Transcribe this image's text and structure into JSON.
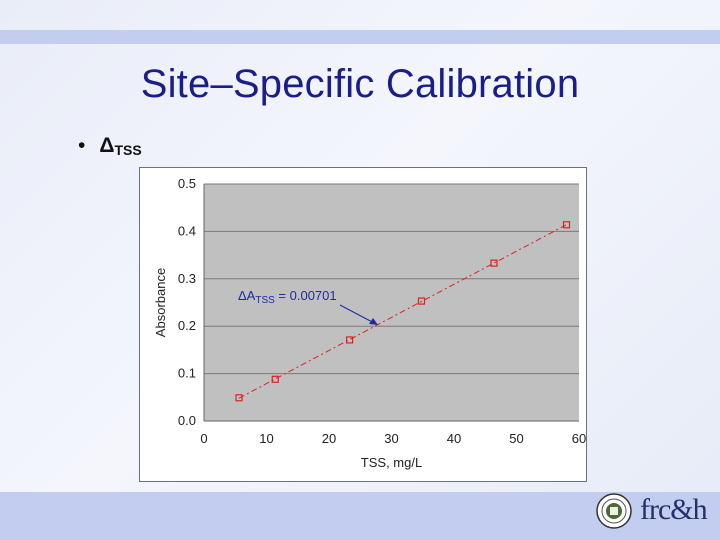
{
  "slide": {
    "title": "Site–Specific Calibration",
    "bullet": {
      "marker": "•",
      "symbol": "Δ",
      "subscript": "TSS"
    }
  },
  "chart_data": {
    "type": "scatter",
    "xlabel": "TSS, mg/L",
    "ylabel": "Absorbance",
    "xlim": [
      0,
      60
    ],
    "ylim": [
      0,
      0.5
    ],
    "x_ticks": [
      0,
      10,
      20,
      30,
      40,
      50,
      60
    ],
    "y_ticks": [
      "0.0",
      "0.1",
      "0.2",
      "0.3",
      "0.4",
      "0.5"
    ],
    "grid": "horizontal",
    "plot_background": "#c0c0c0",
    "series": [
      {
        "marker": "square-open",
        "color": "#e02020",
        "points": [
          {
            "x": 5.6,
            "y": 0.049
          },
          {
            "x": 11.4,
            "y": 0.088
          },
          {
            "x": 23.3,
            "y": 0.171
          },
          {
            "x": 34.8,
            "y": 0.253
          },
          {
            "x": 46.4,
            "y": 0.333
          },
          {
            "x": 58.0,
            "y": 0.414
          }
        ]
      }
    ],
    "trendline": {
      "style": "dash-dot",
      "color": "#e02020",
      "x_start": 5.6,
      "x_end": 58.0
    },
    "annotation": {
      "prefix": "ΔA",
      "subscript": "TSS",
      "suffix": " = 0.00701",
      "color": "#1f2a9e"
    }
  },
  "logos": {
    "seal_color": "#4a6a3a",
    "wordmark": "frc&h"
  }
}
